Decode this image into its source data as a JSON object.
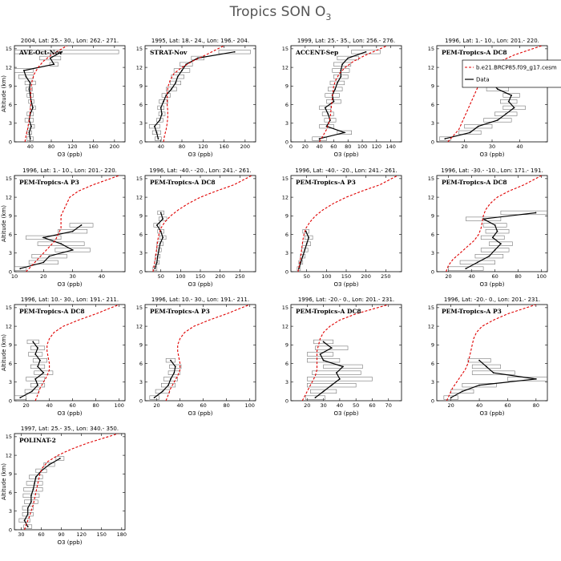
{
  "figure": {
    "title_main": "Tropics SON O",
    "title_sub": "3",
    "model_color": "#e00000",
    "data_color": "#000000"
  },
  "legend": {
    "model_label": "b.e21.BRCP85.f09_g17.cesm",
    "data_label": "Data"
  },
  "chart_data": [
    {
      "type": "line",
      "header": "2004, Lat: 25.- 30., Lon: 262.- 271.",
      "campaign": "AVE-Oct-Nov",
      "xlabel": "O3 (ppb)",
      "ylabel": "Altitude (km)",
      "xlim": [
        10,
        220
      ],
      "xticks": [
        40,
        80,
        120,
        160,
        200
      ],
      "ylim": [
        0,
        15.5
      ],
      "model": {
        "alt": [
          0,
          1,
          2,
          3,
          4,
          5,
          6,
          7,
          8,
          9,
          10,
          11,
          12,
          13,
          14,
          15.5
        ],
        "o3": [
          30,
          32,
          35,
          37,
          39,
          40,
          41,
          41,
          41,
          42,
          44,
          48,
          55,
          65,
          80,
          110
        ]
      },
      "obs": {
        "alt": [
          0.5,
          1.5,
          2.5,
          3.5,
          4.5,
          5.5,
          6.5,
          7.5,
          8.5,
          9.5,
          10.5,
          11.5,
          12.5,
          13.5,
          14.5
        ],
        "o3": [
          40,
          38,
          42,
          38,
          40,
          45,
          42,
          40,
          38,
          40,
          32,
          28,
          85,
          78,
          100
        ],
        "spread": [
          6,
          5,
          6,
          8,
          6,
          5,
          5,
          6,
          6,
          10,
          14,
          18,
          8,
          20,
          108
        ]
      }
    },
    {
      "type": "line",
      "header": "1995, Lat: 18.- 24., Lon: 196.- 204.",
      "campaign": "STRAT-Nov",
      "xlabel": "O3 (ppb)",
      "ylabel": "",
      "xlim": [
        10,
        220
      ],
      "xticks": [
        40,
        80,
        120,
        160,
        200
      ],
      "ylim": [
        0,
        15.5
      ],
      "model": {
        "alt": [
          0,
          1,
          2,
          3,
          4,
          5,
          6,
          7,
          8,
          9,
          10,
          11,
          12,
          13,
          14,
          15.5
        ],
        "o3": [
          45,
          47,
          50,
          52,
          53,
          53,
          52,
          52,
          52,
          54,
          58,
          65,
          80,
          100,
          125,
          160
        ]
      },
      "obs": {
        "alt": [
          0.5,
          1.5,
          2.5,
          3.5,
          4.5,
          5.5,
          6.5,
          7.5,
          8.5,
          9.5,
          10.5,
          11.5,
          12.5,
          13.5,
          14.5
        ],
        "o3": [
          35,
          32,
          28,
          38,
          42,
          40,
          45,
          50,
          60,
          68,
          72,
          80,
          88,
          110,
          180
        ],
        "spread": [
          6,
          8,
          10,
          6,
          6,
          6,
          8,
          8,
          10,
          10,
          12,
          15,
          12,
          12,
          30
        ]
      }
    },
    {
      "type": "line",
      "header": "1999, Lat: 25.- 35., Lon: 256.- 276.",
      "campaign": "ACCENT-Sep",
      "xlabel": "O3 (ppb)",
      "ylabel": "",
      "xlim": [
        0,
        155
      ],
      "xticks": [
        0,
        20,
        40,
        60,
        80,
        100,
        120,
        140
      ],
      "ylim": [
        0,
        15.5
      ],
      "model": {
        "alt": [
          0,
          1,
          2,
          3,
          4,
          5,
          6,
          7,
          8,
          9,
          10,
          11,
          12,
          13,
          14,
          15.5
        ],
        "o3": [
          40,
          45,
          50,
          53,
          55,
          56,
          57,
          58,
          59,
          60,
          63,
          68,
          76,
          88,
          105,
          135
        ]
      },
      "obs": {
        "alt": [
          0.5,
          1.5,
          2.5,
          3.5,
          4.5,
          5.5,
          6.5,
          7.5,
          8.5,
          9.5,
          10.5,
          11.5,
          12.5,
          13.5,
          14.5
        ],
        "o3": [
          40,
          75,
          50,
          55,
          52,
          48,
          60,
          58,
          62,
          65,
          70,
          70,
          72,
          80,
          105
        ],
        "spread": [
          10,
          10,
          10,
          8,
          8,
          8,
          10,
          10,
          10,
          10,
          10,
          12,
          12,
          15,
          20
        ]
      }
    },
    {
      "type": "line",
      "header": "1996, Lat: 1.- 10., Lon: 201.- 220.",
      "campaign": "PEM-Tropics-A DC8",
      "show_legend": true,
      "xlabel": "O3 (ppb)",
      "ylabel": "",
      "xlim": [
        10,
        50
      ],
      "xticks": [
        20,
        30,
        40
      ],
      "ylim": [
        0,
        15.5
      ],
      "model": {
        "alt": [
          0,
          1,
          2,
          3,
          4,
          5,
          6,
          7,
          8,
          9,
          10,
          11,
          12,
          13,
          14,
          15.5
        ],
        "o3": [
          14,
          16,
          18,
          19,
          20,
          21,
          22,
          23,
          24,
          25,
          26,
          27,
          29,
          33,
          38,
          48
        ]
      },
      "obs": {
        "alt": [
          0.5,
          1.5,
          2.5,
          3.5,
          4.5,
          5.5,
          6.5,
          7.5,
          8.5,
          9.5
        ],
        "o3": [
          13,
          22,
          25,
          32,
          35,
          38,
          36,
          37,
          32,
          30
        ],
        "spread": [
          2,
          4,
          5,
          5,
          4,
          4,
          3,
          3,
          4,
          4
        ]
      }
    },
    {
      "type": "line",
      "header": "1996, Lat: 1.- 10., Lon: 201.- 220.",
      "campaign": "PEM-Tropics-A P3",
      "xlabel": "O3 (ppb)",
      "ylabel": "Altitude (km)",
      "xlim": [
        10,
        48
      ],
      "xticks": [
        10,
        20,
        30,
        40
      ],
      "ylim": [
        0,
        15.5
      ],
      "model": {
        "alt": [
          0,
          1,
          2,
          3,
          4,
          5,
          6,
          7,
          8,
          9,
          10,
          11,
          12,
          13,
          14,
          15.5
        ],
        "o3": [
          14,
          16,
          18,
          20,
          22,
          24,
          25,
          26,
          26,
          26,
          27,
          28,
          29,
          32,
          37,
          46
        ]
      },
      "obs": {
        "alt": [
          0.5,
          1.5,
          2.5,
          3.5,
          4.5,
          5.5,
          6.5,
          7.5
        ],
        "o3": [
          12,
          20,
          22,
          30,
          26,
          20,
          30,
          33
        ],
        "spread": [
          2,
          5,
          6,
          6,
          8,
          6,
          5,
          4
        ]
      }
    },
    {
      "type": "line",
      "header": "1996, Lat: -40.- -20., Lon: 241.- 261.",
      "campaign": "PEM-Tropics-A DC8",
      "xlabel": "O3 (ppb)",
      "ylabel": "",
      "xlim": [
        10,
        290
      ],
      "xticks": [
        50,
        100,
        150,
        200,
        250
      ],
      "ylim": [
        0,
        15.5
      ],
      "model": {
        "alt": [
          0,
          1,
          2,
          3,
          4,
          5,
          6,
          7,
          8,
          9,
          10,
          11,
          12,
          13,
          14,
          15.5
        ],
        "o3": [
          30,
          33,
          36,
          38,
          40,
          42,
          45,
          50,
          60,
          75,
          95,
          120,
          150,
          190,
          235,
          280
        ]
      },
      "obs": {
        "alt": [
          0.5,
          1.5,
          2.5,
          3.5,
          4.5,
          5.5,
          6.5,
          7.5,
          8.5,
          9.5
        ],
        "o3": [
          35,
          40,
          42,
          45,
          48,
          55,
          50,
          40,
          55,
          50
        ],
        "spread": [
          5,
          6,
          6,
          6,
          8,
          8,
          8,
          8,
          10,
          8
        ]
      }
    },
    {
      "type": "line",
      "header": "1996, Lat: -40.- -20., Lon: 241.- 261.",
      "campaign": "PEM-Tropics-A P3",
      "xlabel": "O3 (ppb)",
      "ylabel": "",
      "xlim": [
        10,
        290
      ],
      "xticks": [
        50,
        100,
        150,
        200,
        250
      ],
      "ylim": [
        0,
        15.5
      ],
      "model": {
        "alt": [
          0,
          1,
          2,
          3,
          4,
          5,
          6,
          7,
          8,
          9,
          10,
          11,
          12,
          13,
          14,
          15.5
        ],
        "o3": [
          28,
          31,
          34,
          36,
          38,
          40,
          43,
          48,
          58,
          72,
          92,
          118,
          150,
          190,
          235,
          280
        ]
      },
      "obs": {
        "alt": [
          0.5,
          1.5,
          2.5,
          3.5,
          4.5,
          5.5,
          6.5
        ],
        "o3": [
          30,
          35,
          40,
          45,
          50,
          55,
          48
        ],
        "spread": [
          4,
          5,
          6,
          8,
          10,
          10,
          8
        ]
      }
    },
    {
      "type": "line",
      "header": "1996, Lat: -30.- -10., Lon: 171.- 191.",
      "campaign": "PEM-Tropics-A DC8",
      "xlabel": "O3 (ppb)",
      "ylabel": "",
      "xlim": [
        10,
        105
      ],
      "xticks": [
        20,
        40,
        60,
        80,
        100
      ],
      "ylim": [
        0,
        15.5
      ],
      "model": {
        "alt": [
          0,
          1,
          2,
          3,
          4,
          5,
          6,
          7,
          8,
          9,
          10,
          11,
          12,
          13,
          14,
          15.5
        ],
        "o3": [
          18,
          20,
          24,
          30,
          36,
          42,
          46,
          48,
          49,
          50,
          52,
          56,
          62,
          72,
          85,
          100
        ]
      },
      "obs": {
        "alt": [
          0.5,
          1.5,
          2.5,
          3.5,
          4.5,
          5.5,
          6.5,
          7.5,
          8.5,
          9.5
        ],
        "o3": [
          35,
          45,
          55,
          60,
          65,
          58,
          62,
          60,
          50,
          95
        ],
        "spread": [
          15,
          15,
          12,
          12,
          10,
          10,
          10,
          10,
          15,
          30
        ]
      }
    },
    {
      "type": "line",
      "header": "1996, Lat: 10.- 30., Lon: 191.- 211.",
      "campaign": "PEM-Tropics-A DC8",
      "xlabel": "O3 (ppb)",
      "ylabel": "Altitude (km)",
      "xlim": [
        10,
        105
      ],
      "xticks": [
        20,
        40,
        60,
        80,
        100
      ],
      "ylim": [
        0,
        15.5
      ],
      "model": {
        "alt": [
          0,
          1,
          2,
          3,
          4,
          5,
          6,
          7,
          8,
          9,
          10,
          11,
          12,
          13,
          14,
          15.5
        ],
        "o3": [
          28,
          30,
          32,
          35,
          38,
          40,
          40,
          39,
          38,
          38,
          40,
          44,
          52,
          65,
          80,
          100
        ]
      },
      "obs": {
        "alt": [
          0.5,
          1.5,
          2.5,
          3.5,
          4.5,
          5.5,
          6.5,
          7.5,
          8.5,
          9.5
        ],
        "o3": [
          15,
          25,
          30,
          28,
          35,
          30,
          32,
          28,
          30,
          26
        ],
        "spread": [
          5,
          6,
          6,
          8,
          8,
          6,
          6,
          6,
          6,
          5
        ]
      }
    },
    {
      "type": "line",
      "header": "1996, Lat: 10.- 30., Lon: 191.- 211.",
      "campaign": "PEM-Tropics-A P3",
      "xlabel": "O3 (ppb)",
      "ylabel": "",
      "xlim": [
        10,
        105
      ],
      "xticks": [
        20,
        40,
        60,
        80,
        100
      ],
      "ylim": [
        0,
        15.5
      ],
      "model": {
        "alt": [
          0,
          1,
          2,
          3,
          4,
          5,
          6,
          7,
          8,
          9,
          10,
          11,
          12,
          13,
          14,
          15.5
        ],
        "o3": [
          28,
          30,
          32,
          35,
          38,
          40,
          40,
          39,
          38,
          38,
          40,
          44,
          52,
          65,
          80,
          100
        ]
      },
      "obs": {
        "alt": [
          0.5,
          1.5,
          2.5,
          3.5,
          4.5,
          5.5,
          6.5
        ],
        "o3": [
          18,
          25,
          30,
          32,
          35,
          36,
          32
        ],
        "spread": [
          4,
          6,
          6,
          6,
          5,
          5,
          4
        ]
      }
    },
    {
      "type": "line",
      "header": "1996, Lat: -20.- 0., Lon: 201.- 231.",
      "campaign": "PEM-Tropics-A DC8",
      "xlabel": "O3 (ppb)",
      "ylabel": "",
      "xlim": [
        10,
        78
      ],
      "xticks": [
        20,
        30,
        40,
        50,
        60,
        70
      ],
      "ylim": [
        0,
        15.5
      ],
      "model": {
        "alt": [
          0,
          1,
          2,
          3,
          4,
          5,
          6,
          7,
          8,
          9,
          10,
          11,
          12,
          13,
          14,
          15.5
        ],
        "o3": [
          17,
          19,
          21,
          23,
          25,
          26,
          26,
          26,
          26,
          27,
          28,
          30,
          34,
          40,
          50,
          70
        ]
      },
      "obs": {
        "alt": [
          0.5,
          1.5,
          2.5,
          3.5,
          4.5,
          5.5,
          6.5,
          7.5,
          8.5,
          9.5
        ],
        "o3": [
          25,
          30,
          35,
          40,
          38,
          42,
          30,
          28,
          35,
          30
        ],
        "spread": [
          6,
          8,
          15,
          20,
          15,
          12,
          10,
          8,
          10,
          6
        ]
      }
    },
    {
      "type": "line",
      "header": "1996, Lat: -20.- 0., Lon: 201.- 231.",
      "campaign": "PEM-Tropics-A P3",
      "xlabel": "O3 (ppb)",
      "ylabel": "",
      "xlim": [
        10,
        88
      ],
      "xticks": [
        20,
        40,
        60,
        80
      ],
      "ylim": [
        0,
        15.5
      ],
      "model": {
        "alt": [
          0,
          1,
          2,
          3,
          4,
          5,
          6,
          7,
          8,
          9,
          10,
          11,
          12,
          13,
          14,
          15.5
        ],
        "o3": [
          17,
          19,
          21,
          24,
          27,
          30,
          32,
          33,
          34,
          35,
          36,
          38,
          42,
          50,
          60,
          80
        ]
      },
      "obs": {
        "alt": [
          0.5,
          1.5,
          2.5,
          3.5,
          4.5,
          5.5,
          6.5
        ],
        "o3": [
          20,
          28,
          40,
          80,
          50,
          45,
          40
        ],
        "spread": [
          5,
          8,
          12,
          20,
          15,
          10,
          8
        ]
      }
    },
    {
      "type": "line",
      "header": "1997, Lat: 25.- 35., Lon: 340.- 350.",
      "campaign": "POLINAT-2",
      "xlabel": "O3 (ppb)",
      "ylabel": "Altitude (km)",
      "xlim": [
        20,
        185
      ],
      "xticks": [
        30,
        60,
        90,
        120,
        150,
        180
      ],
      "ylim": [
        0,
        15.5
      ],
      "model": {
        "alt": [
          0,
          1,
          2,
          3,
          4,
          5,
          6,
          7,
          8,
          9,
          10,
          11,
          12,
          13,
          14,
          15.5
        ],
        "o3": [
          35,
          38,
          42,
          45,
          48,
          50,
          52,
          54,
          56,
          58,
          62,
          70,
          85,
          105,
          130,
          175
        ]
      },
      "obs": {
        "alt": [
          0.5,
          1.5,
          2.5,
          3.5,
          4.5,
          5.5,
          6.5,
          7.5,
          8.5,
          9.5,
          10.5,
          11.5
        ],
        "o3": [
          40,
          35,
          40,
          40,
          45,
          45,
          48,
          50,
          52,
          60,
          72,
          88
        ],
        "spread": [
          6,
          8,
          8,
          8,
          10,
          12,
          14,
          12,
          10,
          8,
          8,
          6
        ]
      }
    }
  ]
}
